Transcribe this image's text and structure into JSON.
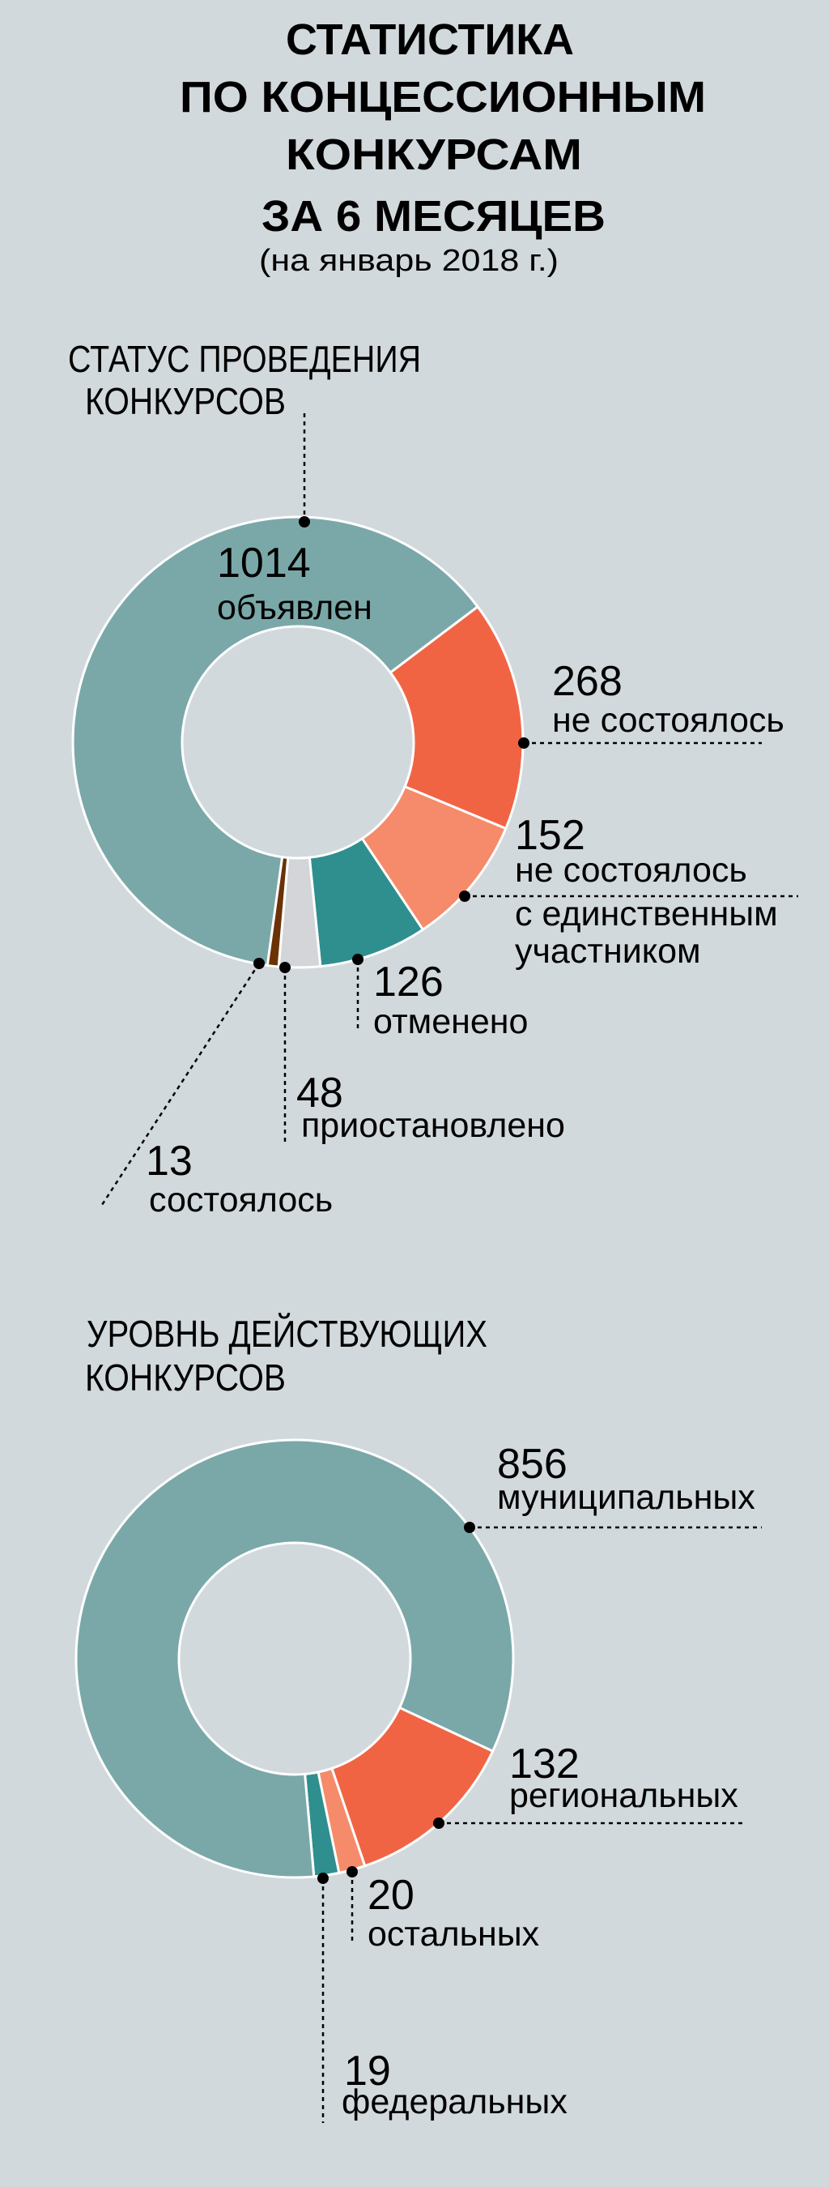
{
  "title": {
    "lines": [
      "СТАТИСТИКА",
      "ПО КОНЦЕССИОННЫМ",
      "КОНКУРСАМ",
      "ЗА 6 МЕСЯЦЕВ"
    ],
    "subtitle": "(на январь 2018 г.)"
  },
  "chart_data": [
    {
      "type": "pie",
      "donut": true,
      "title_lines": [
        "СТАТУС ПРОВЕДЕНИЯ",
        "КОНКУРСОВ"
      ],
      "categories": [
        "не состоялось",
        "не состоялось с единственным участником",
        "отменено",
        "приостановлено",
        "состоялось",
        "объявлен"
      ],
      "label_lines": [
        [
          "не состоялось"
        ],
        [
          "не состоялось",
          "с единственным",
          "участником"
        ],
        [
          "отменено"
        ],
        [
          "приостановлено"
        ],
        [
          "состоялось"
        ],
        [
          "объявлен"
        ]
      ],
      "values": [
        268,
        152,
        126,
        48,
        13,
        1014
      ],
      "colors": [
        "#f06444",
        "#f58b6a",
        "#2f8f8e",
        "#d3d5d8",
        "#6b3206",
        "#7aa8a9"
      ]
    },
    {
      "type": "pie",
      "donut": true,
      "title_lines": [
        "УРОВНЬ ДЕЙСТВУЮЩИХ",
        "КОНКУРСОВ"
      ],
      "categories": [
        "региональных",
        "остальных",
        "федеральных",
        "муниципальных"
      ],
      "label_lines": [
        [
          "региональных"
        ],
        [
          "остальных"
        ],
        [
          "федеральных"
        ],
        [
          "муниципальных"
        ]
      ],
      "values": [
        132,
        20,
        19,
        856
      ],
      "colors": [
        "#f06444",
        "#f58b6a",
        "#2f8f8e",
        "#7aa8a9"
      ]
    }
  ],
  "colors": {
    "background": "#d2d9dc",
    "text": "#000000",
    "separator": "#ffffff"
  }
}
